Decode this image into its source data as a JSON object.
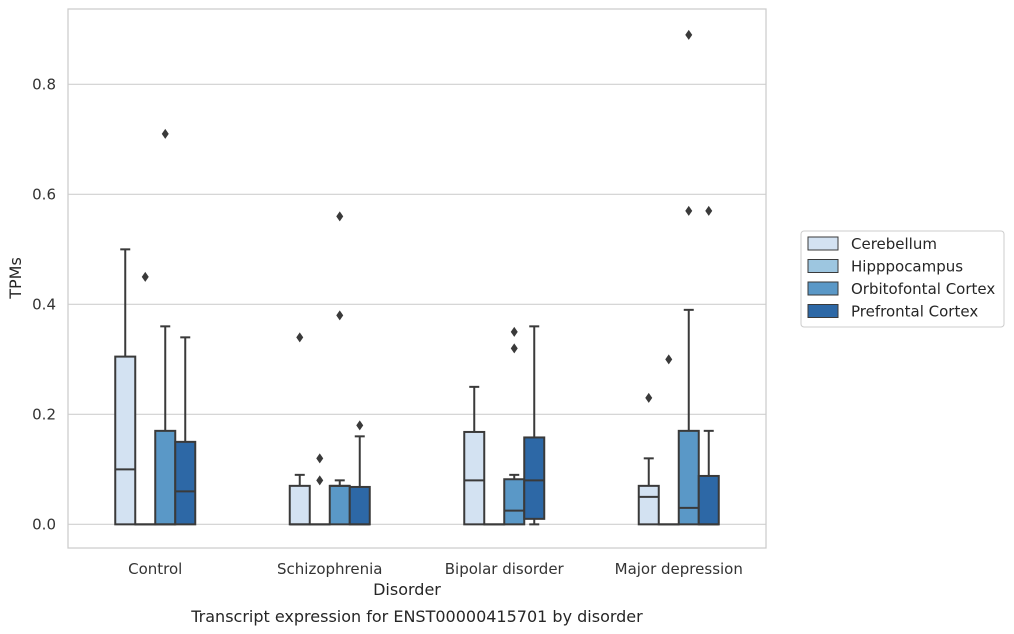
{
  "chart_data": {
    "type": "box",
    "caption": "Transcript expression for ENST00000415701 by disorder",
    "xlabel": "Disorder",
    "ylabel": "TPMs",
    "ylim": [
      -0.043,
      0.937
    ],
    "yticks": [
      0.0,
      0.2,
      0.4,
      0.6,
      0.8
    ],
    "ytick_labels": [
      "0.0",
      "0.2",
      "0.4",
      "0.6",
      "0.8"
    ],
    "grid": "horizontal",
    "legend_position": "right",
    "categories": [
      "Control",
      "Schizophrenia",
      "Bipolar disorder",
      "Major depression"
    ],
    "series": [
      {
        "name": "Cerebellum",
        "color": "#d3e2f2",
        "boxes": [
          {
            "whisker_low": 0.0,
            "q1": 0.0,
            "median": 0.1,
            "q3": 0.305,
            "whisker_high": 0.5,
            "outliers": []
          },
          {
            "whisker_low": 0.0,
            "q1": 0.0,
            "median": 0.0,
            "q3": 0.07,
            "whisker_high": 0.09,
            "outliers": [
              0.34
            ]
          },
          {
            "whisker_low": 0.0,
            "q1": 0.0,
            "median": 0.08,
            "q3": 0.168,
            "whisker_high": 0.25,
            "outliers": []
          },
          {
            "whisker_low": 0.0,
            "q1": 0.0,
            "median": 0.05,
            "q3": 0.07,
            "whisker_high": 0.12,
            "outliers": [
              0.23
            ]
          }
        ]
      },
      {
        "name": "Hipppocampus",
        "color": "#9dc6e0",
        "boxes": [
          {
            "whisker_low": 0.0,
            "q1": 0.0,
            "median": 0.0,
            "q3": 0.0,
            "whisker_high": 0.0,
            "outliers": [
              0.45
            ]
          },
          {
            "whisker_low": 0.0,
            "q1": 0.0,
            "median": 0.0,
            "q3": 0.0,
            "whisker_high": 0.0,
            "outliers": [
              0.12,
              0.08
            ]
          },
          {
            "whisker_low": 0.0,
            "q1": 0.0,
            "median": 0.0,
            "q3": 0.0,
            "whisker_high": 0.0,
            "outliers": []
          },
          {
            "whisker_low": 0.0,
            "q1": 0.0,
            "median": 0.0,
            "q3": 0.0,
            "whisker_high": 0.0,
            "outliers": [
              0.3
            ]
          }
        ]
      },
      {
        "name": "Orbitofontal Cortex",
        "color": "#5a98c7",
        "boxes": [
          {
            "whisker_low": 0.0,
            "q1": 0.0,
            "median": 0.0,
            "q3": 0.17,
            "whisker_high": 0.36,
            "outliers": [
              0.71
            ]
          },
          {
            "whisker_low": 0.0,
            "q1": 0.0,
            "median": 0.07,
            "q3": 0.07,
            "whisker_high": 0.08,
            "outliers": [
              0.56,
              0.38
            ]
          },
          {
            "whisker_low": 0.0,
            "q1": 0.0,
            "median": 0.025,
            "q3": 0.082,
            "whisker_high": 0.09,
            "outliers": [
              0.35,
              0.32
            ]
          },
          {
            "whisker_low": 0.0,
            "q1": 0.0,
            "median": 0.03,
            "q3": 0.17,
            "whisker_high": 0.39,
            "outliers": [
              0.89,
              0.57
            ]
          }
        ]
      },
      {
        "name": "Prefrontal Cortex",
        "color": "#2d68a6",
        "boxes": [
          {
            "whisker_low": 0.0,
            "q1": 0.0,
            "median": 0.06,
            "q3": 0.15,
            "whisker_high": 0.34,
            "outliers": []
          },
          {
            "whisker_low": 0.0,
            "q1": 0.0,
            "median": 0.0,
            "q3": 0.068,
            "whisker_high": 0.16,
            "outliers": [
              0.18
            ]
          },
          {
            "whisker_low": 0.0,
            "q1": 0.01,
            "median": 0.08,
            "q3": 0.158,
            "whisker_high": 0.36,
            "outliers": []
          },
          {
            "whisker_low": 0.0,
            "q1": 0.0,
            "median": 0.0,
            "q3": 0.088,
            "whisker_high": 0.17,
            "outliers": [
              0.57
            ]
          }
        ]
      }
    ]
  }
}
